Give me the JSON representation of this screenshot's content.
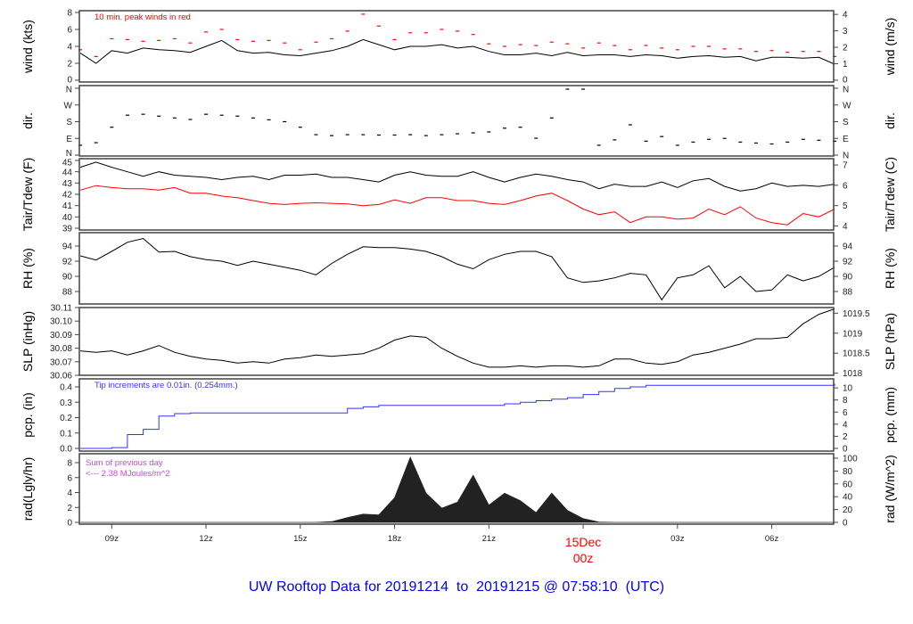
{
  "title": "UW Rooftop Data for 20191214  to  20191215 @ 07:58:10  (UTC)",
  "time_axis": {
    "unit": "hours UTC since 20191214 00z",
    "xlim": [
      7.97,
      31.97
    ],
    "x": [
      8,
      8.5,
      9,
      9.5,
      10,
      10.5,
      11,
      11.5,
      12,
      12.5,
      13,
      13.5,
      14,
      14.5,
      15,
      15.5,
      16,
      16.5,
      17,
      17.5,
      18,
      18.5,
      19,
      19.5,
      20,
      20.5,
      21,
      21.5,
      22,
      22.5,
      23,
      23.5,
      24,
      24.5,
      25,
      25.5,
      26,
      26.5,
      27,
      27.5,
      28,
      28.5,
      29,
      29.5,
      30,
      30.5,
      31,
      31.5,
      32
    ],
    "ticks": [
      {
        "v": 9,
        "label": "09z"
      },
      {
        "v": 12,
        "label": "12z"
      },
      {
        "v": 15,
        "label": "15z"
      },
      {
        "v": 18,
        "label": "18z"
      },
      {
        "v": 21,
        "label": "21z"
      },
      {
        "v": 27,
        "label": "03z"
      },
      {
        "v": 30,
        "label": "06z"
      }
    ],
    "day_marker": {
      "v": 24,
      "line1": "15Dec",
      "line2": "00z",
      "color": "#ff0000"
    }
  },
  "chart_data": [
    {
      "type": "line",
      "ylabel_left": "wind (kts)",
      "ylabel_right": "wind (m/s)",
      "ylim": [
        0,
        8
      ],
      "left_ticks": [
        {
          "v": 0,
          "label": "0"
        },
        {
          "v": 2,
          "label": "2"
        },
        {
          "v": 4,
          "label": "4"
        },
        {
          "v": 6,
          "label": "6"
        },
        {
          "v": 8,
          "label": "8"
        }
      ],
      "right_ticks": [
        {
          "v": 0,
          "label": "0"
        },
        {
          "v": 1,
          "label": "1"
        },
        {
          "v": 2,
          "label": "2"
        },
        {
          "v": 3,
          "label": "3"
        },
        {
          "v": 4,
          "label": "4"
        }
      ],
      "annotation": {
        "text": "10 min. peak winds in red",
        "color": "#ff0000"
      },
      "series": [
        {
          "name": "wind speed",
          "style": "line",
          "color": "#000000",
          "values": [
            3.2,
            2.0,
            3.5,
            3.2,
            3.8,
            3.6,
            3.5,
            3.3,
            4.0,
            4.7,
            3.5,
            3.2,
            3.3,
            3.0,
            2.9,
            3.2,
            3.5,
            4.0,
            4.8,
            4.2,
            3.6,
            4.0,
            4.0,
            4.2,
            3.8,
            4.0,
            3.4,
            3.0,
            3.0,
            3.2,
            2.9,
            3.3,
            2.9,
            3.0,
            3.0,
            2.8,
            3.0,
            2.9,
            2.6,
            2.8,
            2.9,
            2.7,
            2.8,
            2.3,
            2.7,
            2.7,
            2.6,
            2.7,
            1.9
          ]
        },
        {
          "name": "10 min peak",
          "style": "dash",
          "color": "#ff0000",
          "values": [
            3.6,
            2.8,
            4.9,
            4.8,
            4.6,
            4.7,
            4.9,
            4.4,
            5.7,
            6.0,
            4.8,
            4.6,
            4.7,
            4.4,
            3.6,
            4.5,
            4.9,
            5.8,
            7.8,
            6.4,
            4.8,
            5.6,
            5.6,
            6.0,
            5.8,
            5.4,
            4.3,
            4.0,
            4.2,
            4.1,
            4.5,
            4.3,
            3.8,
            4.4,
            4.1,
            3.6,
            4.1,
            3.8,
            3.6,
            4.0,
            4.0,
            3.7,
            3.7,
            3.4,
            3.5,
            3.3,
            3.4,
            3.4,
            2.8
          ]
        }
      ]
    },
    {
      "type": "scatter",
      "ylabel_left": "dir.",
      "ylabel_right": "dir.",
      "ylim": [
        0,
        360
      ],
      "left_ticks": [
        {
          "v": 0,
          "label": "N"
        },
        {
          "v": 90,
          "label": "E"
        },
        {
          "v": 180,
          "label": "S"
        },
        {
          "v": 270,
          "label": "W"
        },
        {
          "v": 360,
          "label": "N"
        }
      ],
      "right_ticks": [
        {
          "v": 0,
          "label": "N"
        },
        {
          "v": 90,
          "label": "E"
        },
        {
          "v": 180,
          "label": "S"
        },
        {
          "v": 270,
          "label": "W"
        },
        {
          "v": 360,
          "label": "N"
        }
      ],
      "series": [
        {
          "name": "wind direction (deg)",
          "style": "dash",
          "color": "#000000",
          "values": [
            53,
            67,
            150,
            215,
            220,
            210,
            200,
            192,
            220,
            215,
            210,
            200,
            190,
            180,
            150,
            110,
            105,
            110,
            110,
            108,
            108,
            110,
            105,
            110,
            115,
            120,
            125,
            145,
            150,
            91,
            200,
            355,
            355,
            53,
            82,
            163,
            75,
            100,
            53,
            70,
            85,
            90,
            70,
            65,
            60,
            70,
            85,
            80,
            75
          ]
        }
      ]
    },
    {
      "type": "line",
      "ylabel_left": "Tair/Tdew (F)",
      "ylabel_right": "Tair/Tdew (C)",
      "ylim": [
        39,
        45
      ],
      "left_ticks": [
        {
          "v": 39,
          "label": "39"
        },
        {
          "v": 40,
          "label": "40"
        },
        {
          "v": 41,
          "label": "41"
        },
        {
          "v": 42,
          "label": "42"
        },
        {
          "v": 43,
          "label": "43"
        },
        {
          "v": 44,
          "label": "44"
        },
        {
          "v": 45,
          "label": "45"
        }
      ],
      "right_ticks": [
        {
          "v": 4,
          "label": "4"
        },
        {
          "v": 5,
          "label": "5"
        },
        {
          "v": 6,
          "label": "6"
        },
        {
          "v": 7,
          "label": "7"
        }
      ],
      "series": [
        {
          "name": "Tair",
          "style": "line",
          "color": "#000000",
          "values": [
            44.4,
            44.85,
            44.4,
            44.0,
            43.6,
            44.0,
            43.7,
            43.6,
            43.5,
            43.3,
            43.5,
            43.6,
            43.3,
            43.7,
            43.7,
            43.8,
            43.5,
            43.5,
            43.3,
            43.1,
            43.7,
            44.0,
            43.7,
            43.6,
            43.6,
            44.0,
            43.5,
            43.1,
            43.5,
            43.8,
            43.6,
            43.3,
            43.1,
            42.5,
            42.9,
            42.7,
            42.7,
            43.1,
            42.6,
            43.2,
            43.4,
            42.7,
            42.3,
            42.5,
            43.0,
            42.7,
            42.8,
            42.7,
            42.9
          ]
        },
        {
          "name": "Tdew",
          "style": "line",
          "color": "#ff0000",
          "values": [
            42.37,
            42.77,
            42.6,
            42.5,
            42.5,
            42.37,
            42.6,
            42.1,
            42.1,
            41.85,
            41.7,
            41.45,
            41.2,
            41.1,
            41.2,
            41.25,
            41.2,
            41.15,
            41.0,
            41.1,
            41.5,
            41.2,
            41.7,
            41.7,
            41.45,
            41.45,
            41.2,
            41.1,
            41.45,
            41.85,
            42.1,
            41.45,
            40.7,
            40.2,
            40.45,
            39.5,
            40.0,
            40.0,
            39.8,
            39.9,
            40.7,
            40.2,
            40.9,
            39.9,
            39.5,
            39.3,
            40.3,
            40.0,
            40.7
          ]
        }
      ]
    },
    {
      "type": "line",
      "ylabel_left": "RH (%)",
      "ylabel_right": "RH (%)",
      "ylim": [
        86.5,
        95.5
      ],
      "left_ticks": [
        {
          "v": 88,
          "label": "88"
        },
        {
          "v": 90,
          "label": "90"
        },
        {
          "v": 92,
          "label": "92"
        },
        {
          "v": 94,
          "label": "94"
        }
      ],
      "right_ticks": [
        {
          "v": 88,
          "label": "88"
        },
        {
          "v": 90,
          "label": "90"
        },
        {
          "v": 92,
          "label": "92"
        },
        {
          "v": 94,
          "label": "94"
        }
      ],
      "series": [
        {
          "name": "RH",
          "style": "line",
          "color": "#000000",
          "values": [
            92.7,
            92.15,
            93.3,
            94.5,
            95.0,
            93.2,
            93.3,
            92.6,
            92.2,
            92.0,
            91.45,
            92.0,
            91.6,
            91.2,
            90.8,
            90.2,
            91.7,
            92.9,
            93.9,
            93.8,
            93.8,
            93.6,
            93.3,
            92.6,
            91.6,
            91.0,
            92.2,
            92.9,
            93.3,
            93.3,
            92.6,
            89.8,
            89.2,
            89.4,
            89.8,
            90.4,
            90.2,
            86.9,
            89.8,
            90.2,
            91.4,
            88.5,
            90.0,
            88.0,
            88.2,
            90.2,
            89.4,
            90.0,
            91.2
          ]
        }
      ]
    },
    {
      "type": "line",
      "ylabel_left": "SLP (inHg)",
      "ylabel_right": "SLP (hPa)",
      "ylim": [
        30.06,
        30.11
      ],
      "left_ticks": [
        {
          "v": 30.06,
          "label": "30.06"
        },
        {
          "v": 30.07,
          "label": "30.07"
        },
        {
          "v": 30.08,
          "label": "30.08"
        },
        {
          "v": 30.09,
          "label": "30.09"
        },
        {
          "v": 30.1,
          "label": "30.10"
        },
        {
          "v": 30.11,
          "label": "30.11"
        }
      ],
      "right_ticks": [
        {
          "v": 1018,
          "label": "1018"
        },
        {
          "v": 1018.5,
          "label": "1018.5"
        },
        {
          "v": 1019,
          "label": "1019"
        },
        {
          "v": 1019.5,
          "label": "1019.5"
        }
      ],
      "series": [
        {
          "name": "SLP",
          "style": "line",
          "color": "#000000",
          "values": [
            30.078,
            30.077,
            30.078,
            30.075,
            30.078,
            30.082,
            30.077,
            30.074,
            30.072,
            30.071,
            30.069,
            30.07,
            30.069,
            30.072,
            30.073,
            30.075,
            30.074,
            30.075,
            30.076,
            30.08,
            30.086,
            30.089,
            30.088,
            30.08,
            30.074,
            30.069,
            30.066,
            30.066,
            30.067,
            30.066,
            30.067,
            30.067,
            30.066,
            30.067,
            30.072,
            30.072,
            30.069,
            30.068,
            30.07,
            30.075,
            30.077,
            30.08,
            30.083,
            30.087,
            30.087,
            30.088,
            30.098,
            30.105,
            30.109
          ]
        }
      ]
    },
    {
      "type": "line",
      "ylabel_left": "pcp. (in)",
      "ylabel_right": "pcp. (mm)",
      "ylim": [
        0,
        0.42
      ],
      "left_ticks": [
        {
          "v": 0,
          "label": "0.0"
        },
        {
          "v": 0.1,
          "label": "0.1"
        },
        {
          "v": 0.2,
          "label": "0.2"
        },
        {
          "v": 0.3,
          "label": "0.3"
        },
        {
          "v": 0.4,
          "label": "0.4"
        }
      ],
      "right_ticks": [
        {
          "v": 0,
          "label": "0"
        },
        {
          "v": 2,
          "label": "2"
        },
        {
          "v": 4,
          "label": "4"
        },
        {
          "v": 6,
          "label": "6"
        },
        {
          "v": 8,
          "label": "8"
        },
        {
          "v": 10,
          "label": "10"
        }
      ],
      "annotation": {
        "text": "Tip increments are 0.01in. (0.254mm.)",
        "color": "#3333ff"
      },
      "series": [
        {
          "name": "cumulative precipitation",
          "style": "step",
          "color": "#3333ff",
          "values": [
            0,
            0,
            0.005,
            0.09,
            0.124,
            0.21,
            0.226,
            0.23,
            0.23,
            0.23,
            0.23,
            0.23,
            0.23,
            0.23,
            0.23,
            0.23,
            0.23,
            0.26,
            0.27,
            0.28,
            0.28,
            0.28,
            0.28,
            0.28,
            0.28,
            0.28,
            0.28,
            0.29,
            0.3,
            0.31,
            0.32,
            0.33,
            0.35,
            0.37,
            0.39,
            0.4,
            0.41,
            0.41,
            0.41,
            0.41,
            0.41,
            0.41,
            0.41,
            0.41,
            0.41,
            0.41,
            0.41,
            0.41,
            0.42
          ]
        }
      ]
    },
    {
      "type": "area",
      "ylabel_left": "rad(Lgly/hr)",
      "ylabel_right": "rad (W/m^2)",
      "ylim": [
        0,
        8.7
      ],
      "left_ticks": [
        {
          "v": 0,
          "label": "0"
        },
        {
          "v": 2,
          "label": "2"
        },
        {
          "v": 4,
          "label": "4"
        },
        {
          "v": 6,
          "label": "6"
        },
        {
          "v": 8,
          "label": "8"
        }
      ],
      "right_ticks": [
        {
          "v": 0,
          "label": "0"
        },
        {
          "v": 20,
          "label": "20"
        },
        {
          "v": 40,
          "label": "40"
        },
        {
          "v": 60,
          "label": "60"
        },
        {
          "v": 80,
          "label": "80"
        },
        {
          "v": 100,
          "label": "100"
        }
      ],
      "annotation": {
        "text": "Sum of previous day",
        "text2": "<--- 2.38 MJoules/m^2",
        "color": "#cc44ee"
      },
      "series": [
        {
          "name": "solar radiation",
          "style": "area",
          "color": "#222222",
          "values": [
            0,
            0,
            0,
            0,
            0,
            0,
            0,
            0,
            0,
            0,
            0,
            0,
            0,
            0,
            0,
            0,
            0.1,
            0.63,
            1.1,
            1.0,
            3.3,
            8.7,
            3.9,
            1.9,
            2.7,
            6.3,
            2.3,
            3.9,
            2.9,
            1.3,
            3.9,
            1.6,
            0.5,
            0.05,
            0,
            0,
            0,
            0,
            0,
            0,
            0,
            0,
            0,
            0,
            0,
            0,
            0,
            0,
            0
          ]
        }
      ]
    }
  ]
}
